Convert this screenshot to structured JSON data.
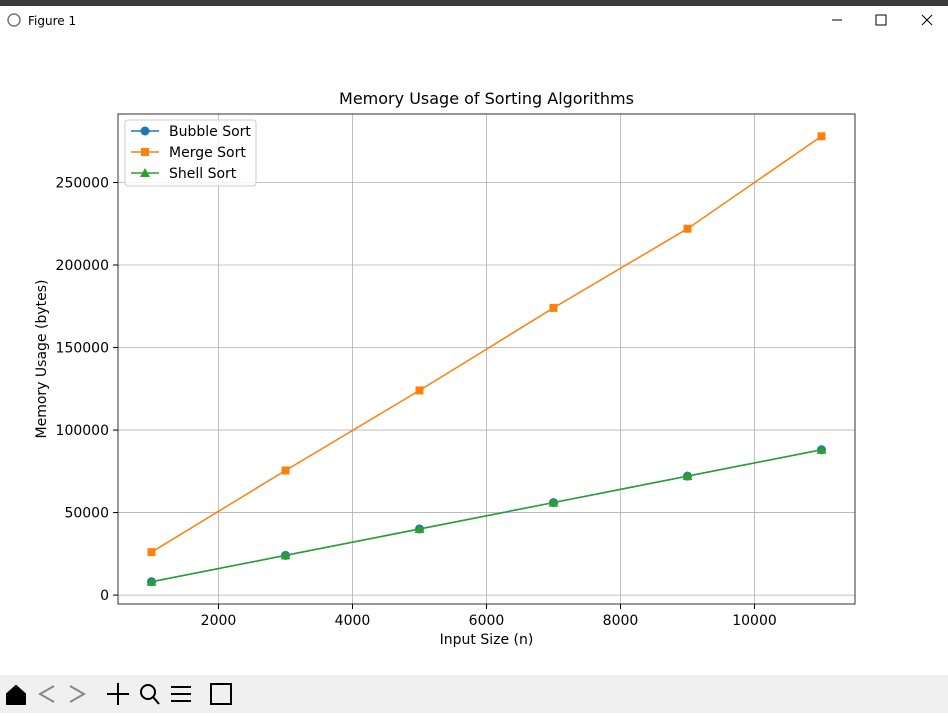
{
  "window": {
    "title": "Figure 1"
  },
  "chart_data": {
    "type": "line",
    "title": "Memory Usage of Sorting Algorithms",
    "x_label": "Input Size (n)",
    "y_label": "Memory Usage (bytes)",
    "x": [
      1000,
      3000,
      5000,
      7000,
      9000,
      11000
    ],
    "series": [
      {
        "name": "Bubble Sort",
        "color": "#1f77b4",
        "marker": "circle",
        "values": [
          8056,
          24056,
          40056,
          56056,
          72056,
          88056
        ]
      },
      {
        "name": "Merge Sort",
        "color": "#ff7f0e",
        "marker": "square",
        "values": [
          26000,
          75500,
          124000,
          174000,
          222000,
          278000
        ]
      },
      {
        "name": "Shell Sort",
        "color": "#2ca02c",
        "marker": "triangle",
        "values": [
          8056,
          24056,
          40056,
          56056,
          72056,
          88056
        ]
      }
    ],
    "xlim": [
      500,
      11500
    ],
    "xticks": [
      2000,
      4000,
      6000,
      8000,
      10000
    ],
    "ylim": [
      -5400,
      291500
    ],
    "yticks": [
      0,
      50000,
      100000,
      150000,
      200000,
      250000
    ],
    "grid": true,
    "legend": "upper left"
  }
}
